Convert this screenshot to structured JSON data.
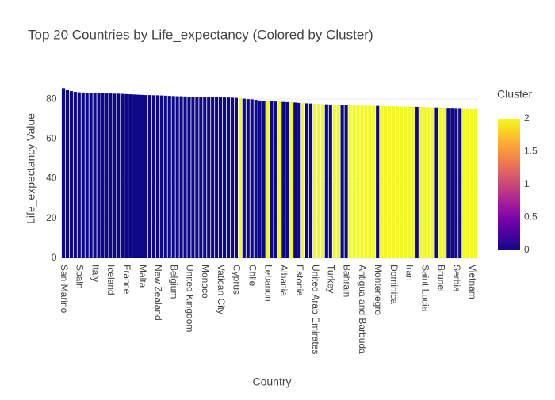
{
  "chart_data": {
    "type": "bar",
    "title": "Top 20 Countries by Life_expectancy (Colored by Cluster)",
    "x_label": "Country",
    "y_label": "Life_expectancy Value",
    "categories": [
      "San Marino",
      null,
      null,
      null,
      "Spain",
      null,
      null,
      null,
      "Italy",
      null,
      null,
      null,
      "Iceland",
      null,
      null,
      null,
      "France",
      null,
      null,
      null,
      "Malta",
      null,
      null,
      null,
      "New Zealand",
      null,
      null,
      null,
      "Belgium",
      null,
      null,
      null,
      "United Kingdom",
      null,
      null,
      null,
      "Monaco",
      null,
      null,
      null,
      "Vatican City",
      null,
      null,
      null,
      "Cyprus",
      null,
      null,
      null,
      "Chile",
      null,
      null,
      null,
      "Lebanon",
      null,
      null,
      null,
      "Albania",
      null,
      null,
      null,
      "Estonia",
      null,
      null,
      null,
      "United Arab Emirates",
      null,
      null,
      null,
      "Turkey",
      null,
      null,
      null,
      "Bahrain",
      null,
      null,
      null,
      "Antigua and Barbuda",
      null,
      null,
      null,
      "Montenegro",
      null,
      null,
      null,
      "Dominica",
      null,
      null,
      null,
      "Iran",
      null,
      null,
      null,
      "Saint Lucia",
      null,
      null,
      null,
      "Brunei",
      null,
      null,
      null,
      "Serbia",
      null,
      null,
      null,
      "Vietnam",
      null
    ],
    "values": [
      85.5,
      84.5,
      84,
      83.6,
      83.4,
      83.3,
      83.2,
      83.1,
      83,
      83,
      82.9,
      82.8,
      82.8,
      82.7,
      82.7,
      82.6,
      82.5,
      82.4,
      82.3,
      82.2,
      82.1,
      82,
      82,
      81.9,
      81.9,
      81.8,
      81.7,
      81.6,
      81.5,
      81.4,
      81.4,
      81.3,
      81.2,
      81.2,
      81.1,
      81.1,
      81,
      81,
      81,
      80.9,
      80.9,
      80.8,
      80.8,
      80.7,
      80.6,
      80.5,
      80.2,
      80,
      79.9,
      79.6,
      79.3,
      79.1,
      79,
      78.9,
      78.8,
      78.7,
      78.6,
      78.5,
      78.4,
      78.3,
      78.1,
      78,
      77.9,
      77.8,
      77.7,
      77.6,
      77.5,
      77.4,
      77.3,
      77.2,
      77.1,
      77,
      77,
      76.9,
      76.9,
      76.8,
      76.8,
      76.7,
      76.7,
      76.6,
      76.6,
      76.5,
      76.5,
      76.4,
      76.4,
      76.3,
      76.3,
      76.2,
      76.2,
      76.1,
      76.1,
      76,
      76,
      75.9,
      75.8,
      75.8,
      75.7,
      75.7,
      75.6,
      75.6,
      75.5,
      75.5,
      75.4,
      75.3,
      75.2,
      75.1
    ],
    "cluster": [
      0,
      0,
      0,
      0,
      0,
      0,
      0,
      0,
      0,
      0,
      0,
      0,
      0,
      0,
      0,
      0,
      0,
      0,
      0,
      0,
      0,
      0,
      0,
      0,
      0,
      0,
      0,
      0,
      0,
      0,
      0,
      0,
      0,
      0,
      0,
      0,
      0,
      0,
      0,
      0,
      0,
      0,
      0,
      0,
      0,
      2,
      0,
      0,
      0,
      0,
      0,
      0,
      2,
      0,
      0,
      2,
      0,
      0,
      2,
      0,
      0,
      2,
      0,
      0,
      2,
      2,
      2,
      0,
      0,
      2,
      2,
      0,
      0,
      2,
      2,
      2,
      2,
      2,
      2,
      2,
      0,
      2,
      2,
      2,
      2,
      2,
      2,
      2,
      2,
      2,
      0,
      2,
      2,
      2,
      2,
      0,
      2,
      2,
      0,
      0,
      0,
      0,
      2,
      2,
      2,
      2
    ],
    "colorbar": {
      "title": "Cluster",
      "lim": [
        0,
        2
      ],
      "ticks": [
        0,
        0.5,
        1,
        1.5,
        2
      ],
      "colorscale": [
        "#0d0887",
        "#46039f",
        "#7201a8",
        "#9c179e",
        "#bd3786",
        "#d8576b",
        "#ed7953",
        "#fb9f3a",
        "#fdca26",
        "#f0f921"
      ]
    },
    "ylim": [
      0,
      90
    ],
    "yticks": [
      0,
      20,
      40,
      60,
      80
    ],
    "grid": true
  }
}
